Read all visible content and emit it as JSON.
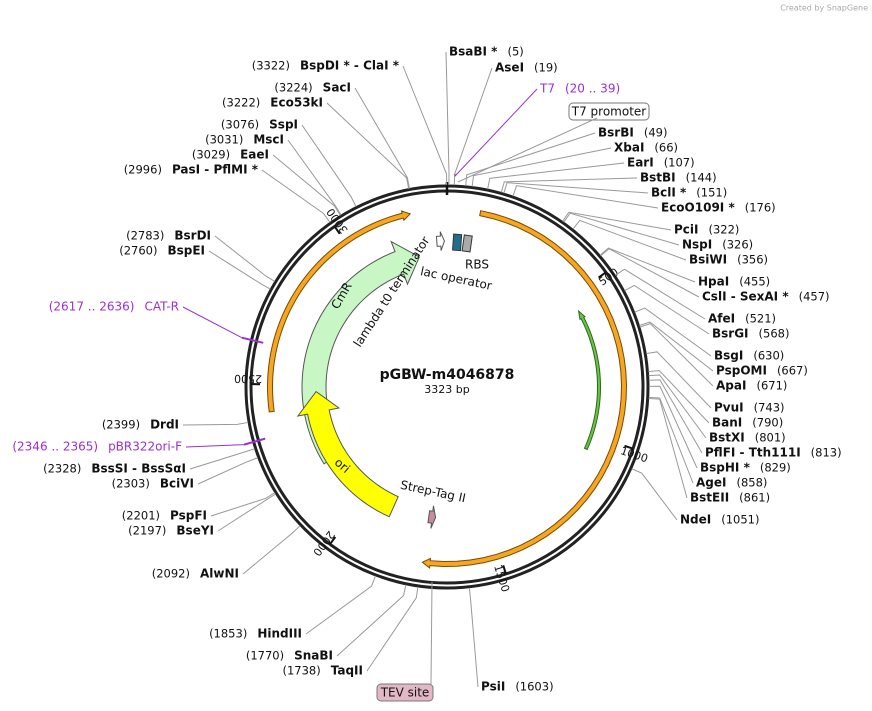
{
  "watermark": "Created by SnapGene",
  "map": {
    "name": "pGBW-m4046878",
    "length": "3323 bp",
    "ticks": [
      500,
      1000,
      1500,
      2000,
      2500,
      3000
    ],
    "features": {
      "cmr": "CmR",
      "terminator": "lambda t0 terminator",
      "rbs": "RBS",
      "lac": "lac operator",
      "ori": "ori",
      "strep": "Strep-Tag II",
      "t7promoter": "T7 promoter",
      "tev": "TEV site"
    },
    "primers": [
      {
        "name": "T7",
        "position": "(20 .. 39)"
      },
      {
        "name": "CAT-R",
        "position": "(2617 .. 2636)"
      },
      {
        "name": "pBR322ori-F",
        "position": "(2346 .. 2365)"
      }
    ],
    "sites": [
      {
        "name": "BsaBI *",
        "position": "(5)"
      },
      {
        "name": "AseI",
        "position": "(19)"
      },
      {
        "name": "BsrBI",
        "position": "(49)"
      },
      {
        "name": "XbaI",
        "position": "(66)"
      },
      {
        "name": "EarI",
        "position": "(107)"
      },
      {
        "name": "BstBI",
        "position": "(144)"
      },
      {
        "name": "BclI *",
        "position": "(151)"
      },
      {
        "name": "EcoO109I *",
        "position": "(176)"
      },
      {
        "name": "PciI",
        "position": "(322)"
      },
      {
        "name": "NspI",
        "position": "(326)"
      },
      {
        "name": "BsiWI",
        "position": "(356)"
      },
      {
        "name": "HpaI",
        "position": "(455)"
      },
      {
        "name": "CslI  -  SexAI *",
        "position": "(457)"
      },
      {
        "name": "AfeI",
        "position": "(521)"
      },
      {
        "name": "BsrGI",
        "position": "(568)"
      },
      {
        "name": "BsgI",
        "position": "(630)"
      },
      {
        "name": "PspOMI",
        "position": "(667)"
      },
      {
        "name": "ApaI",
        "position": "(671)"
      },
      {
        "name": "PvuI",
        "position": "(743)"
      },
      {
        "name": "BanI",
        "position": "(790)"
      },
      {
        "name": "BstXI",
        "position": "(801)"
      },
      {
        "name": "PflFI  -  Tth111I",
        "position": "(813)"
      },
      {
        "name": "BspHI *",
        "position": "(829)"
      },
      {
        "name": "AgeI",
        "position": "(858)"
      },
      {
        "name": "BstEII",
        "position": "(861)"
      },
      {
        "name": "NdeI",
        "position": "(1051)"
      },
      {
        "name": "PsiI",
        "position": "(1603)"
      },
      {
        "name": "TaqII",
        "position": "(1738)"
      },
      {
        "name": "SnaBI",
        "position": "(1770)"
      },
      {
        "name": "HindIII",
        "position": "(1853)"
      },
      {
        "name": "AlwNI",
        "position": "(2092)"
      },
      {
        "name": "BseYI",
        "position": "(2197)"
      },
      {
        "name": "PspFI",
        "position": "(2201)"
      },
      {
        "name": "BciVI",
        "position": "(2303)"
      },
      {
        "name": "BssSI  -  BssSαI",
        "position": "(2328)"
      },
      {
        "name": "DrdI",
        "position": "(2399)"
      },
      {
        "name": "BspEI",
        "position": "(2760)"
      },
      {
        "name": "BsrDI",
        "position": "(2783)"
      },
      {
        "name": "PasI  -  PflMI *",
        "position": "(2996)"
      },
      {
        "name": "EaeI",
        "position": "(3029)"
      },
      {
        "name": "MscI",
        "position": "(3031)"
      },
      {
        "name": "SspI",
        "position": "(3076)"
      },
      {
        "name": "Eco53kI",
        "position": "(3222)"
      },
      {
        "name": "SacI",
        "position": "(3224)"
      },
      {
        "name": "BspDI *  -  ClaI *",
        "position": "(3322)"
      }
    ]
  }
}
